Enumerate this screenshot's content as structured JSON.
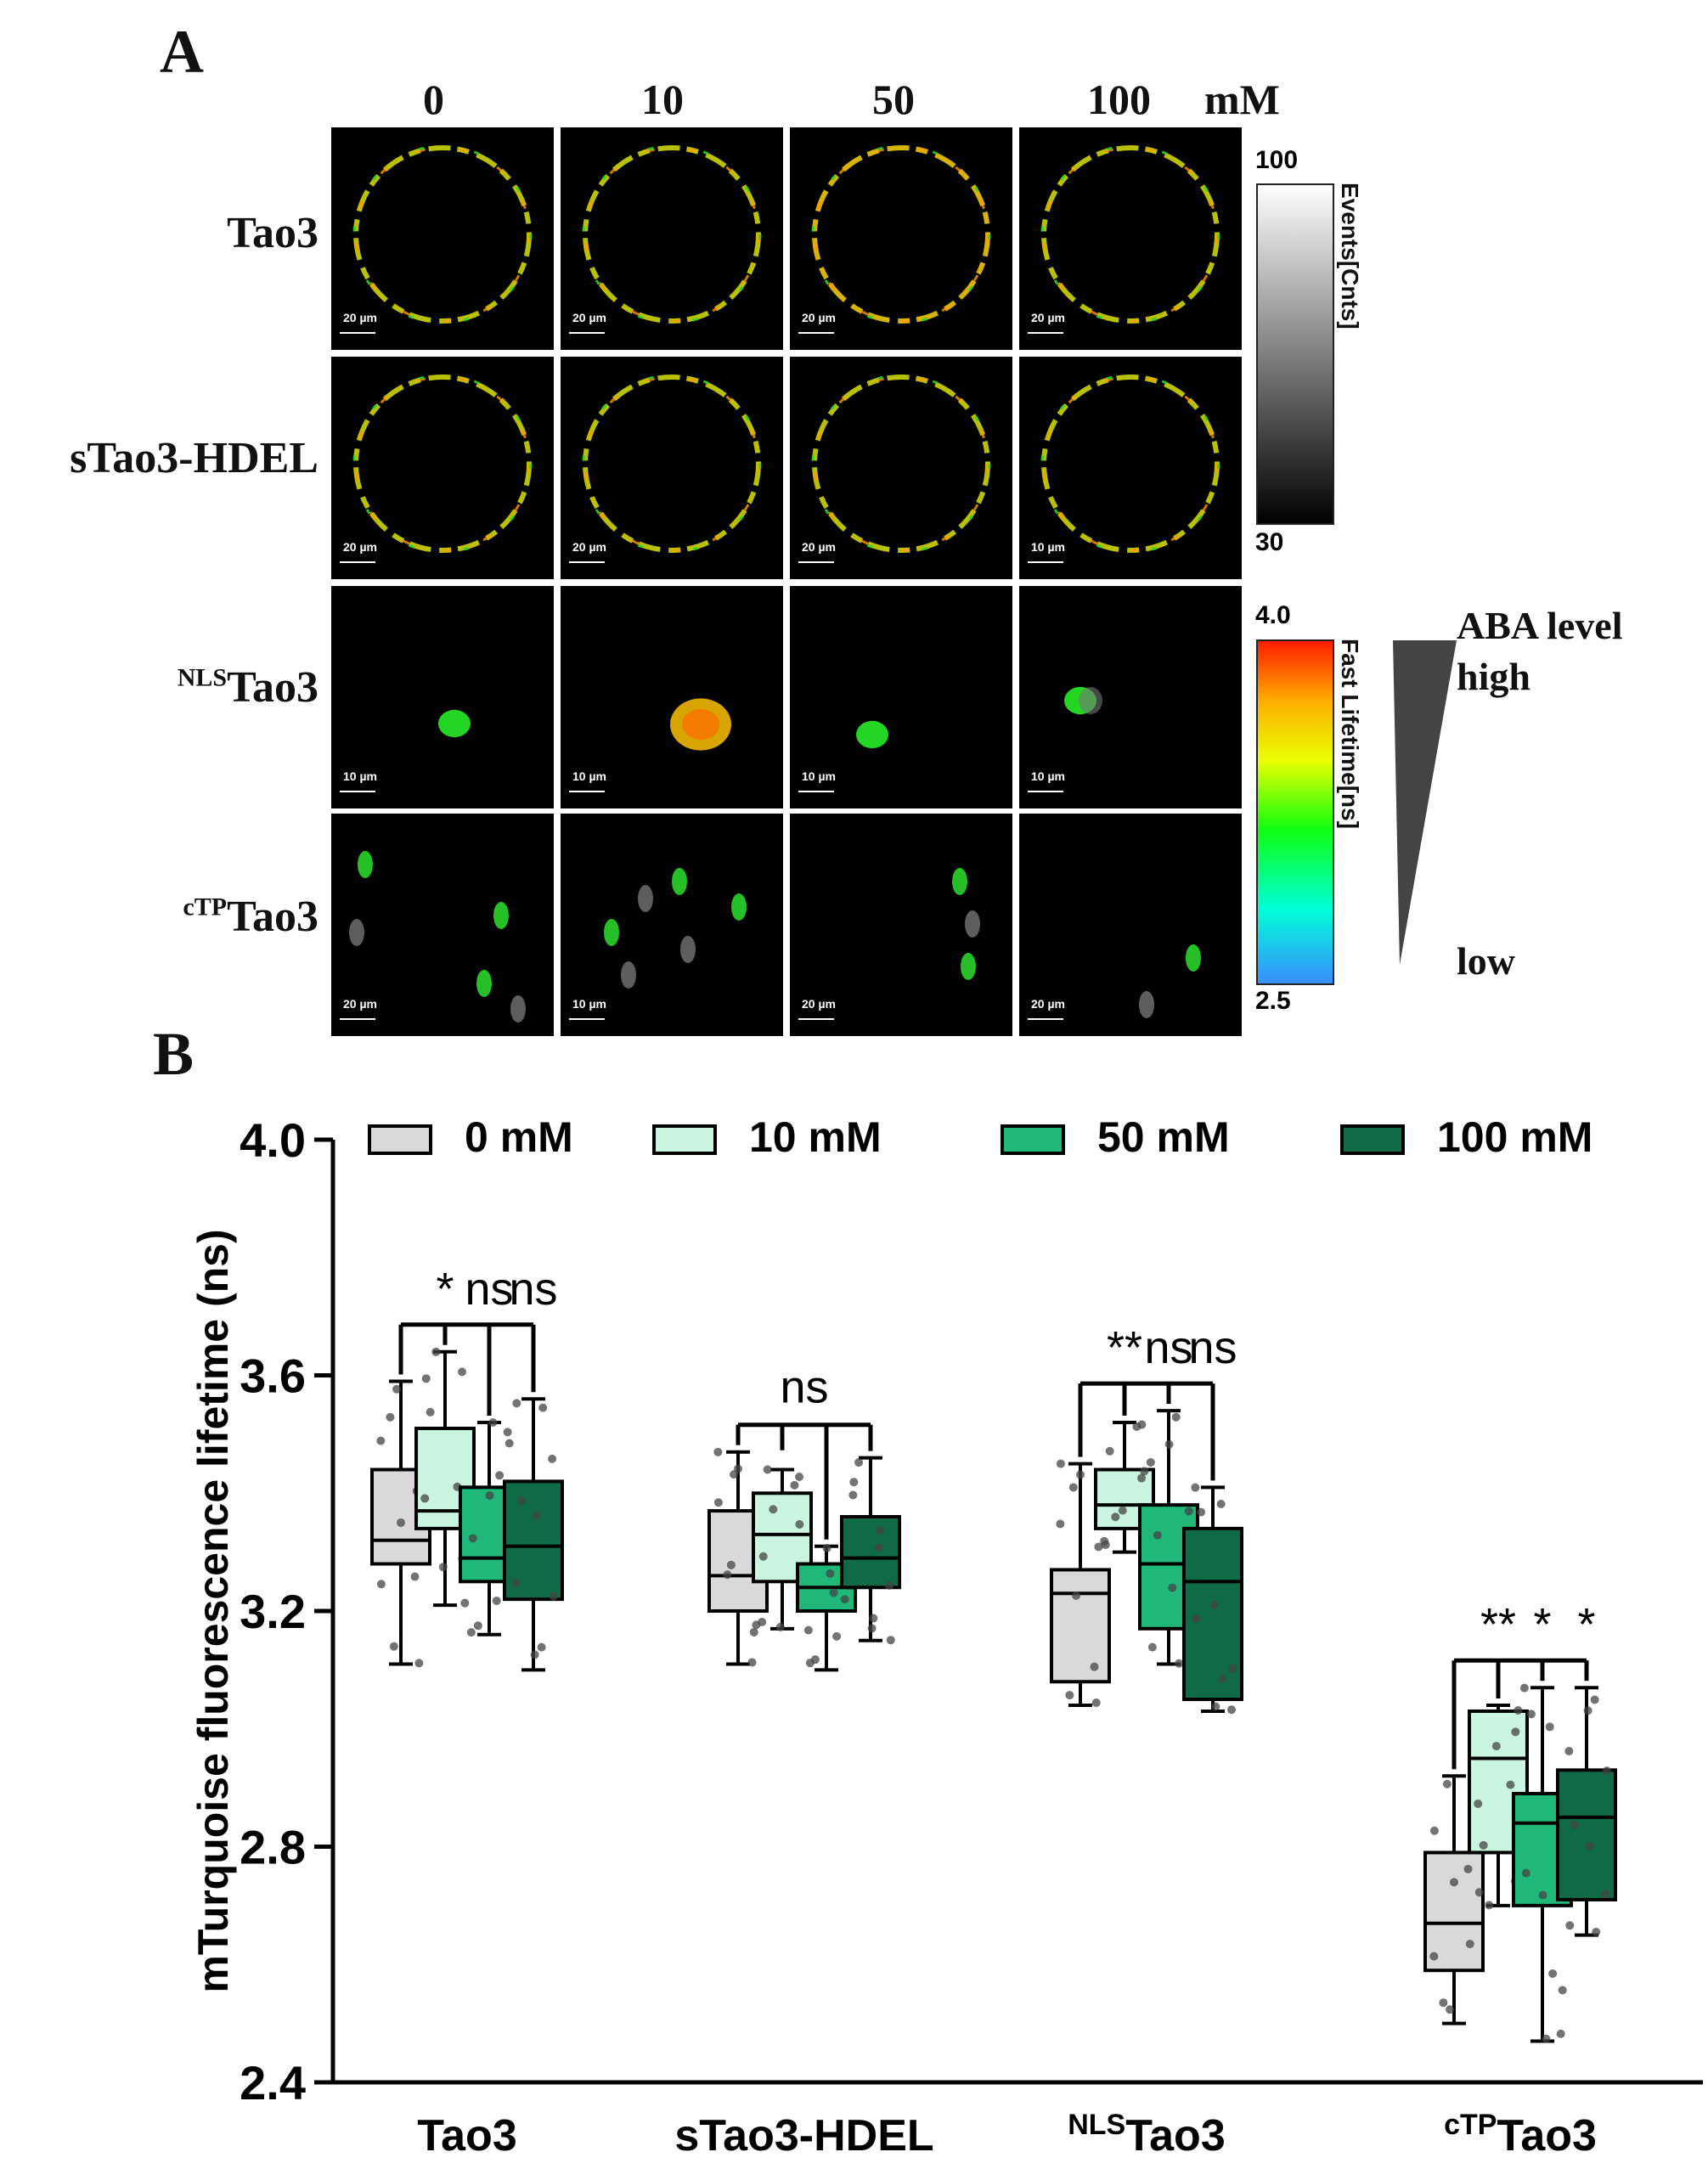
{
  "panel_a": {
    "label": "A",
    "concentrations": [
      "0",
      "10",
      "50",
      "100"
    ],
    "unit": "mM",
    "rows": [
      {
        "base": "Tao3",
        "sup": "",
        "scales": [
          "20 µm",
          "20 µm",
          "20 µm",
          "20 µm"
        ]
      },
      {
        "base": "sTao3-HDEL",
        "sup": "",
        "scales": [
          "20 µm",
          "20 µm",
          "20 µm",
          "10 µm"
        ]
      },
      {
        "base": "Tao3",
        "sup": "NLS",
        "scales": [
          "10 µm",
          "10 µm",
          "10 µm",
          "10 µm"
        ]
      },
      {
        "base": "Tao3",
        "sup": "cTP",
        "scales": [
          "20 µm",
          "10 µm",
          "20 µm",
          "20 µm"
        ]
      }
    ],
    "colorbar_intensity": {
      "max": "100",
      "min": "30",
      "title": "Events[Cnts]"
    },
    "colorbar_lifetime": {
      "max": "4.0",
      "min": "2.5",
      "title": "Fast Lifetime[ns]"
    },
    "aba": {
      "title": "ABA level",
      "high": "high",
      "low": "low"
    }
  },
  "panel_b_label": "B",
  "chart_data": {
    "type": "box",
    "ylabel": "mTurquoise fluorescence lifetime (ns)",
    "ylim": [
      2.4,
      4.0
    ],
    "yticks": [
      "2.4",
      "2.8",
      "3.2",
      "3.6",
      "4.0"
    ],
    "categories": [
      {
        "base": "Tao3",
        "sup": ""
      },
      {
        "base": "sTao3-HDEL",
        "sup": ""
      },
      {
        "base": "Tao3",
        "sup": "NLS"
      },
      {
        "base": "Tao3",
        "sup": "cTP"
      }
    ],
    "colors": {
      "0 mM": "#d9d9d9",
      "10 mM": "#c9f5e1",
      "50 mM": "#1fb879",
      "100 mM": "#0f6b45"
    },
    "series": [
      {
        "name": "0 mM",
        "color": "#d9d9d9",
        "boxes": [
          {
            "min": 3.11,
            "q1": 3.28,
            "median": 3.32,
            "q3": 3.44,
            "max": 3.59
          },
          {
            "min": 3.11,
            "q1": 3.2,
            "median": 3.26,
            "q3": 3.37,
            "max": 3.47
          },
          {
            "min": 3.04,
            "q1": 3.08,
            "median": 3.23,
            "q3": 3.27,
            "max": 3.45
          },
          {
            "min": 2.5,
            "q1": 2.59,
            "median": 2.67,
            "q3": 2.79,
            "max": 2.92
          }
        ]
      },
      {
        "name": "10 mM",
        "color": "#c9f5e1",
        "boxes": [
          {
            "min": 3.21,
            "q1": 3.34,
            "median": 3.37,
            "q3": 3.51,
            "max": 3.64
          },
          {
            "min": 3.17,
            "q1": 3.25,
            "median": 3.33,
            "q3": 3.4,
            "max": 3.44
          },
          {
            "min": 3.3,
            "q1": 3.34,
            "median": 3.38,
            "q3": 3.44,
            "max": 3.52
          },
          {
            "min": 2.7,
            "q1": 2.79,
            "median": 2.95,
            "q3": 3.03,
            "max": 3.04
          }
        ]
      },
      {
        "name": "50 mM",
        "color": "#1fb879",
        "boxes": [
          {
            "min": 3.16,
            "q1": 3.25,
            "median": 3.29,
            "q3": 3.41,
            "max": 3.52
          },
          {
            "min": 3.1,
            "q1": 3.2,
            "median": 3.24,
            "q3": 3.28,
            "max": 3.31
          },
          {
            "min": 3.11,
            "q1": 3.17,
            "median": 3.28,
            "q3": 3.38,
            "max": 3.54
          },
          {
            "min": 2.47,
            "q1": 2.7,
            "median": 2.84,
            "q3": 2.89,
            "max": 3.07
          }
        ]
      },
      {
        "name": "100 mM",
        "color": "#0f6b45",
        "boxes": [
          {
            "min": 3.1,
            "q1": 3.22,
            "median": 3.31,
            "q3": 3.42,
            "max": 3.56
          },
          {
            "min": 3.15,
            "q1": 3.24,
            "median": 3.29,
            "q3": 3.36,
            "max": 3.46
          },
          {
            "min": 3.03,
            "q1": 3.05,
            "median": 3.25,
            "q3": 3.34,
            "max": 3.41
          },
          {
            "min": 2.65,
            "q1": 2.71,
            "median": 2.85,
            "q3": 2.93,
            "max": 3.07
          }
        ]
      }
    ],
    "significance": [
      {
        "labels": [
          "*",
          "ns",
          "ns"
        ]
      },
      {
        "labels": [
          "ns"
        ]
      },
      {
        "labels": [
          "**",
          "ns",
          "ns"
        ]
      },
      {
        "labels": [
          "**",
          "*",
          "*"
        ]
      }
    ]
  }
}
